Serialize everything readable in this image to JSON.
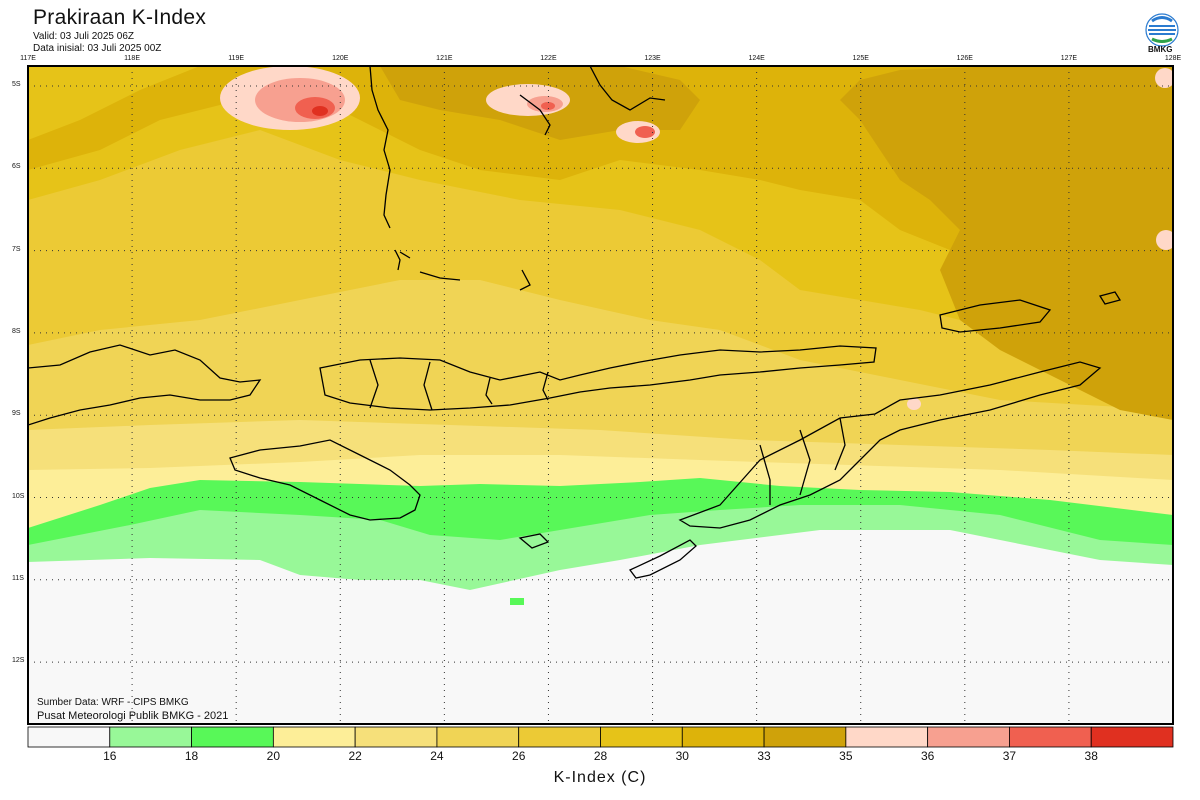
{
  "header": {
    "title": "Prakiraan K-Index",
    "valid": "Valid: 03 Juli 2025 06Z",
    "initial": "Data inisial: 03 Juli 2025 00Z",
    "logo_text": "BMKG"
  },
  "map": {
    "lon_labels": [
      "117E",
      "118E",
      "119E",
      "120E",
      "121E",
      "122E",
      "123E",
      "124E",
      "125E",
      "126E",
      "127E",
      "128E"
    ],
    "lat_labels": [
      "5S",
      "6S",
      "7S",
      "8S",
      "9S",
      "10S",
      "11S",
      "12S"
    ],
    "colors": {
      "land_outline": "#000000",
      "grid": "#333333",
      "k_below_16": "#f8f8f8",
      "k_16_18": "#98f898",
      "k_18_20": "#58f858",
      "k_20_22": "#fdee98",
      "k_22_24": "#f6e07a",
      "k_24_26": "#f0d455",
      "k_26_28": "#ecca35",
      "k_28_30": "#e6c318",
      "k_30_33": "#ddb30a",
      "k_33_35": "#cfa20a",
      "k_35_36": "#ffd8c8",
      "k_36_37": "#f7a090",
      "k_37_38": "#f06050",
      "k_above_38": "#e03020"
    }
  },
  "footer": {
    "source": "Sumber Data: WRF - CIPS BMKG",
    "credit": "Pusat Meteorologi Publik BMKG - 2021"
  },
  "colorbar": {
    "title": "K-Index (C)",
    "labels": [
      "16",
      "18",
      "20",
      "22",
      "24",
      "26",
      "28",
      "30",
      "33",
      "35",
      "36",
      "37",
      "38"
    ],
    "colors": [
      "#f8f8f8",
      "#98f898",
      "#58f858",
      "#fdee98",
      "#f6e07a",
      "#f0d455",
      "#ecca35",
      "#e6c318",
      "#ddb30a",
      "#cfa20a",
      "#ffd8c8",
      "#f7a090",
      "#f06050",
      "#e03020"
    ]
  }
}
